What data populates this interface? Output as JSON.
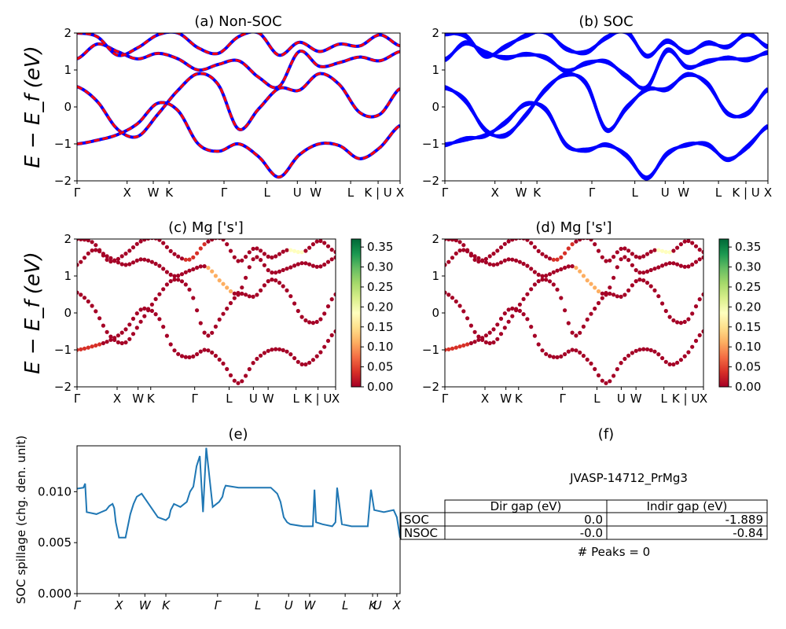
{
  "chart_data": [
    {
      "panel": "a",
      "type": "line",
      "title": "(a) Non-SOC",
      "ylabel": "E − E_f (eV)",
      "ylim": [
        -2,
        2
      ],
      "yticks": [
        -2,
        -1,
        0,
        1,
        2
      ],
      "kpath": [
        "Γ",
        "X",
        "W",
        "K",
        "Γ",
        "L",
        "U",
        "W",
        "L",
        "K | U",
        "X"
      ],
      "style": "red dashed over blue (spin up / spin down overlap)",
      "colors": {
        "spin_up": "#0000ff",
        "spin_down": "#ff0000"
      },
      "series": [
        {
          "values": [
            0.55,
            0.15,
            -0.6,
            -0.8,
            -0.2,
            0.45,
            0.9,
            0.6,
            -0.6,
            -0.05,
            0.5,
            0.45,
            0.9,
            0.6,
            -0.15,
            -0.2,
            0.5
          ]
        },
        {
          "values": [
            -1.0,
            -0.9,
            -0.75,
            -0.45,
            0.1,
            -0.1,
            -1.0,
            -1.2,
            -1.0,
            -1.35,
            -1.9,
            -1.3,
            -1.0,
            -1.05,
            -1.4,
            -1.1,
            -0.5
          ]
        },
        {
          "values": [
            1.3,
            1.7,
            1.5,
            1.3,
            1.45,
            1.3,
            1.0,
            1.15,
            1.25,
            0.8,
            0.55,
            1.5,
            1.1,
            1.2,
            1.35,
            1.25,
            1.5
          ]
        },
        {
          "values": [
            2.0,
            1.9,
            1.4,
            1.6,
            1.95,
            2.0,
            1.6,
            1.45,
            1.9,
            2.0,
            1.4,
            1.75,
            1.5,
            1.7,
            1.65,
            1.95,
            1.65
          ]
        }
      ]
    },
    {
      "panel": "b",
      "type": "line",
      "title": "(b) SOC",
      "ylim": [
        -2,
        2
      ],
      "yticks": [
        -2,
        -1,
        0,
        1,
        2
      ],
      "kpath": [
        "Γ",
        "X",
        "W",
        "K",
        "Γ",
        "L",
        "U",
        "W",
        "L",
        "K | U",
        "X"
      ],
      "colors": {
        "bands": "#0000ff"
      },
      "series": [
        {
          "values": [
            0.55,
            0.15,
            -0.6,
            -0.8,
            -0.2,
            0.45,
            0.9,
            0.6,
            -0.6,
            -0.05,
            0.5,
            0.45,
            0.9,
            0.6,
            -0.15,
            -0.2,
            0.5
          ]
        },
        {
          "values": [
            -1.0,
            -0.9,
            -0.75,
            -0.45,
            0.1,
            -0.1,
            -1.0,
            -1.2,
            -1.0,
            -1.35,
            -1.9,
            -1.3,
            -1.0,
            -1.05,
            -1.4,
            -1.1,
            -0.5
          ]
        },
        {
          "values": [
            1.3,
            1.7,
            1.5,
            1.3,
            1.45,
            1.3,
            1.0,
            1.15,
            1.25,
            0.8,
            0.55,
            1.5,
            1.1,
            1.2,
            1.35,
            1.25,
            1.5
          ]
        },
        {
          "values": [
            2.0,
            1.9,
            1.4,
            1.6,
            1.95,
            2.0,
            1.6,
            1.45,
            1.9,
            2.0,
            1.4,
            1.75,
            1.5,
            1.7,
            1.65,
            1.95,
            1.65
          ]
        }
      ]
    },
    {
      "panel": "c",
      "type": "scatter",
      "title": "(c)  Mg ['s']",
      "ylabel": "E − E_f (eV)",
      "ylim": [
        -2,
        2
      ],
      "yticks": [
        -2,
        -1,
        0,
        1,
        2
      ],
      "kpath": [
        "Γ",
        "X",
        "W",
        "K",
        "Γ",
        "L",
        "U",
        "W",
        "L",
        "K | U",
        "X"
      ],
      "colorbar": {
        "min": 0.0,
        "max": 0.37,
        "ticks": [
          "0.00",
          "0.05",
          "0.10",
          "0.15",
          "0.20",
          "0.25",
          "0.30",
          "0.35"
        ],
        "colormap": "RdYlGn"
      },
      "series": [
        {
          "values": [
            0.55,
            0.15,
            -0.6,
            -0.8,
            -0.2,
            0.45,
            0.9,
            0.6,
            -0.6,
            -0.05,
            0.5,
            0.45,
            0.9,
            0.6,
            -0.15,
            -0.2,
            0.5
          ]
        },
        {
          "values": [
            -1.0,
            -0.9,
            -0.75,
            -0.45,
            0.1,
            -0.1,
            -1.0,
            -1.2,
            -1.0,
            -1.35,
            -1.9,
            -1.3,
            -1.0,
            -1.05,
            -1.4,
            -1.1,
            -0.5
          ]
        },
        {
          "values": [
            1.3,
            1.7,
            1.5,
            1.3,
            1.45,
            1.3,
            1.0,
            1.15,
            1.25,
            0.8,
            0.55,
            1.5,
            1.1,
            1.2,
            1.35,
            1.25,
            1.5
          ]
        },
        {
          "values": [
            2.0,
            1.9,
            1.4,
            1.6,
            1.95,
            2.0,
            1.6,
            1.45,
            1.9,
            2.0,
            1.4,
            1.75,
            1.5,
            1.7,
            1.65,
            1.95,
            1.65
          ]
        }
      ]
    },
    {
      "panel": "d",
      "type": "scatter",
      "title": "(d) Mg ['s']",
      "ylim": [
        -2,
        2
      ],
      "yticks": [
        -2,
        -1,
        0,
        1,
        2
      ],
      "kpath": [
        "Γ",
        "X",
        "W",
        "K",
        "Γ",
        "L",
        "U",
        "W",
        "L",
        "K | U",
        "X"
      ],
      "colorbar": {
        "min": 0.0,
        "max": 0.37,
        "ticks": [
          "0.00",
          "0.05",
          "0.10",
          "0.15",
          "0.20",
          "0.25",
          "0.30",
          "0.35"
        ],
        "colormap": "RdYlGn"
      },
      "series": [
        {
          "values": [
            0.55,
            0.15,
            -0.6,
            -0.8,
            -0.2,
            0.45,
            0.9,
            0.6,
            -0.6,
            -0.05,
            0.5,
            0.45,
            0.9,
            0.6,
            -0.15,
            -0.2,
            0.5
          ]
        },
        {
          "values": [
            -1.0,
            -0.9,
            -0.75,
            -0.45,
            0.1,
            -0.1,
            -1.0,
            -1.2,
            -1.0,
            -1.35,
            -1.9,
            -1.3,
            -1.0,
            -1.05,
            -1.4,
            -1.1,
            -0.5
          ]
        },
        {
          "values": [
            1.3,
            1.7,
            1.5,
            1.3,
            1.45,
            1.3,
            1.0,
            1.15,
            1.25,
            0.8,
            0.55,
            1.5,
            1.1,
            1.2,
            1.35,
            1.25,
            1.5
          ]
        },
        {
          "values": [
            2.0,
            1.9,
            1.4,
            1.6,
            1.95,
            2.0,
            1.6,
            1.45,
            1.9,
            2.0,
            1.4,
            1.75,
            1.5,
            1.7,
            1.65,
            1.95,
            1.65
          ]
        }
      ]
    },
    {
      "panel": "e",
      "type": "line",
      "title": "(e)",
      "ylabel": "SOC spillage (chg. den. unit)",
      "ylim": [
        0,
        0.0145
      ],
      "yticks": [
        "0.000",
        "0.005",
        "0.010"
      ],
      "kpath": [
        "Γ",
        "X",
        "W",
        "K",
        "Γ",
        "L",
        "U",
        "W",
        "L",
        "K",
        "U",
        "X"
      ],
      "colors": {
        "line": "#1f77b4"
      },
      "x": [
        0.0,
        0.02,
        0.025,
        0.03,
        0.06,
        0.09,
        0.1,
        0.11,
        0.115,
        0.12,
        0.13,
        0.15,
        0.165,
        0.175,
        0.185,
        0.2,
        0.25,
        0.275,
        0.285,
        0.29,
        0.3,
        0.32,
        0.34,
        0.345,
        0.35,
        0.36,
        0.37,
        0.38,
        0.39,
        0.4,
        0.42,
        0.44,
        0.45,
        0.455,
        0.46,
        0.5,
        0.55,
        0.6,
        0.62,
        0.63,
        0.64,
        0.65,
        0.66,
        0.7,
        0.73,
        0.735,
        0.74,
        0.76,
        0.79,
        0.8,
        0.805,
        0.82,
        0.85,
        0.9,
        0.91,
        0.92,
        0.95,
        0.98,
        0.99,
        1.0
      ],
      "values": [
        0.0103,
        0.0104,
        0.0108,
        0.008,
        0.0078,
        0.0082,
        0.0086,
        0.0088,
        0.0084,
        0.007,
        0.0055,
        0.0055,
        0.0078,
        0.0088,
        0.0095,
        0.0098,
        0.0075,
        0.0072,
        0.0075,
        0.0082,
        0.0088,
        0.0085,
        0.009,
        0.0095,
        0.01,
        0.0105,
        0.0125,
        0.0135,
        0.008,
        0.0143,
        0.0085,
        0.009,
        0.0095,
        0.0102,
        0.0106,
        0.0104,
        0.0104,
        0.0104,
        0.0098,
        0.009,
        0.0075,
        0.007,
        0.0068,
        0.0066,
        0.0066,
        0.0102,
        0.007,
        0.0068,
        0.0066,
        0.007,
        0.0104,
        0.0068,
        0.0066,
        0.0066,
        0.0102,
        0.0082,
        0.008,
        0.0082,
        0.0075,
        0.0055
      ]
    }
  ],
  "table": {
    "title": "(f)",
    "subtitle": "JVASP-14712_PrMg3",
    "headers": [
      "",
      "Dir gap (eV)",
      "Indir gap (eV)"
    ],
    "rows": [
      [
        "SOC",
        "0.0",
        "-1.889"
      ],
      [
        "NSOC",
        "-0.0",
        "-0.84"
      ]
    ],
    "footer": "# Peaks = 0"
  }
}
